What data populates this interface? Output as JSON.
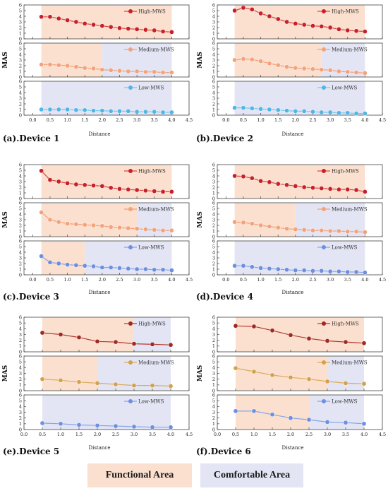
{
  "colors": {
    "functional": "#fbe0cf",
    "comfortable": "#e3e5f4",
    "high": "#c8202a",
    "high_line": "#d84a40",
    "medium": "#f4a27a",
    "medium_line": "#f0a07a",
    "low": "#4fb6e6",
    "low_line": "#79c7ec",
    "high6": "#9e2a22",
    "high6_line": "#b33a30",
    "medium6": "#d4a04a",
    "medium6_line": "#d9ab5e",
    "low6": "#6c8fe0",
    "low6_line": "#86a4e6"
  },
  "legend": {
    "functional": "Functional Area",
    "comfortable": "Comfortable Area"
  },
  "chart_data": [
    {
      "type": "line",
      "title": "(a).Device 1",
      "xlabel": "Distance",
      "ylabel": "MAS",
      "xlim": [
        -0.25,
        4.5
      ],
      "xticks": [
        "0.0",
        "0.5",
        "1.0",
        "1.5",
        "2.0",
        "2.5",
        "3.0",
        "3.5",
        "4.0",
        "4.5"
      ],
      "yticks": [
        "0",
        "1",
        "2",
        "3",
        "4",
        "5",
        "6"
      ],
      "ylim": [
        0,
        6
      ],
      "series": [
        {
          "name": "High-MWS",
          "color": "high",
          "functional": [
            0.25,
            4.0
          ],
          "comfortable": null,
          "x": [
            0.25,
            0.5,
            0.75,
            1.0,
            1.25,
            1.5,
            1.75,
            2.0,
            2.25,
            2.5,
            2.75,
            3.0,
            3.25,
            3.5,
            3.75,
            4.0
          ],
          "y": [
            3.9,
            3.9,
            3.6,
            3.3,
            3.0,
            2.7,
            2.5,
            2.3,
            2.1,
            1.9,
            1.8,
            1.7,
            1.6,
            1.5,
            1.3,
            1.2
          ]
        },
        {
          "name": "Medium-MWS",
          "color": "medium",
          "functional": [
            0.25,
            2.0
          ],
          "comfortable": [
            2.0,
            4.0
          ],
          "x": [
            0.25,
            0.5,
            0.75,
            1.0,
            1.25,
            1.5,
            1.75,
            2.0,
            2.25,
            2.5,
            2.75,
            3.0,
            3.25,
            3.5,
            3.75,
            4.0
          ],
          "y": [
            2.2,
            2.2,
            2.1,
            2.0,
            1.8,
            1.6,
            1.5,
            1.3,
            1.2,
            1.1,
            1.0,
            1.0,
            0.9,
            0.9,
            0.8,
            0.8
          ]
        },
        {
          "name": "Low-MWS",
          "color": "low",
          "functional": null,
          "comfortable": [
            0.25,
            4.0
          ],
          "x": [
            0.25,
            0.5,
            0.75,
            1.0,
            1.25,
            1.5,
            1.75,
            2.0,
            2.25,
            2.5,
            2.75,
            3.0,
            3.25,
            3.5,
            3.75,
            4.0
          ],
          "y": [
            1.0,
            1.0,
            1.0,
            1.0,
            0.9,
            0.9,
            0.8,
            0.8,
            0.7,
            0.7,
            0.7,
            0.6,
            0.6,
            0.6,
            0.5,
            0.5
          ]
        }
      ]
    },
    {
      "type": "line",
      "title": "(b).Device 2",
      "xlabel": "Distance",
      "ylabel": "MAS",
      "xlim": [
        -0.25,
        4.5
      ],
      "xticks": [
        "0.0",
        "0.5",
        "1.0",
        "1.5",
        "2.0",
        "2.5",
        "3.0",
        "3.5",
        "4.0",
        "4.5"
      ],
      "yticks": [
        "0",
        "1",
        "2",
        "3",
        "4",
        "5",
        "6"
      ],
      "ylim": [
        0,
        6
      ],
      "series": [
        {
          "name": "High-MWS",
          "color": "high",
          "functional": [
            0.25,
            4.0
          ],
          "comfortable": null,
          "x": [
            0.25,
            0.5,
            0.75,
            1.0,
            1.25,
            1.5,
            1.75,
            2.0,
            2.25,
            2.5,
            2.75,
            3.0,
            3.25,
            3.5,
            3.75,
            4.0
          ],
          "y": [
            5.0,
            5.5,
            5.2,
            4.5,
            4.0,
            3.5,
            3.0,
            2.7,
            2.5,
            2.3,
            2.2,
            2.0,
            1.7,
            1.5,
            1.4,
            1.3
          ]
        },
        {
          "name": "Medium-MWS",
          "color": "medium",
          "functional": [
            0.25,
            2.75
          ],
          "comfortable": [
            2.75,
            4.0
          ],
          "x": [
            0.25,
            0.5,
            0.75,
            1.0,
            1.25,
            1.5,
            1.75,
            2.0,
            2.25,
            2.5,
            2.75,
            3.0,
            3.25,
            3.5,
            3.75,
            4.0
          ],
          "y": [
            3.0,
            3.2,
            3.1,
            2.8,
            2.4,
            2.1,
            1.8,
            1.6,
            1.5,
            1.4,
            1.3,
            1.2,
            1.0,
            0.9,
            0.8,
            0.7
          ]
        },
        {
          "name": "Low-MWS",
          "color": "low",
          "functional": null,
          "comfortable": [
            0.25,
            4.0
          ],
          "x": [
            0.25,
            0.5,
            0.75,
            1.0,
            1.25,
            1.5,
            1.75,
            2.0,
            2.25,
            2.5,
            2.75,
            3.0,
            3.25,
            3.5,
            3.75,
            4.0
          ],
          "y": [
            1.3,
            1.3,
            1.2,
            1.1,
            1.0,
            0.9,
            0.8,
            0.7,
            0.7,
            0.6,
            0.5,
            0.5,
            0.4,
            0.4,
            0.3,
            0.3
          ]
        }
      ]
    },
    {
      "type": "line",
      "title": "(c).Device 3",
      "xlabel": "Distance",
      "ylabel": "MAS",
      "xlim": [
        -0.25,
        4.5
      ],
      "xticks": [
        "0.0",
        "0.5",
        "1.0",
        "1.5",
        "2.0",
        "2.5",
        "3.0",
        "3.5",
        "4.0",
        "4.5"
      ],
      "yticks": [
        "0",
        "1",
        "2",
        "3",
        "4",
        "5",
        "6"
      ],
      "ylim": [
        0,
        6
      ],
      "series": [
        {
          "name": "High-MWS",
          "color": "high",
          "functional": [
            0.25,
            4.0
          ],
          "comfortable": null,
          "x": [
            0.25,
            0.5,
            0.75,
            1.0,
            1.25,
            1.5,
            1.75,
            2.0,
            2.25,
            2.5,
            2.75,
            3.0,
            3.25,
            3.5,
            3.75,
            4.0
          ],
          "y": [
            4.9,
            3.3,
            3.0,
            2.7,
            2.5,
            2.4,
            2.3,
            2.2,
            1.9,
            1.7,
            1.6,
            1.5,
            1.4,
            1.3,
            1.2,
            1.2
          ]
        },
        {
          "name": "Medium-MWS",
          "color": "medium",
          "functional": [
            0.25,
            3.0
          ],
          "comfortable": [
            3.0,
            4.0
          ],
          "x": [
            0.25,
            0.5,
            0.75,
            1.0,
            1.25,
            1.5,
            1.75,
            2.0,
            2.25,
            2.5,
            2.75,
            3.0,
            3.25,
            3.5,
            3.75,
            4.0
          ],
          "y": [
            4.3,
            3.0,
            2.6,
            2.3,
            2.2,
            2.1,
            2.0,
            1.9,
            1.7,
            1.6,
            1.5,
            1.4,
            1.3,
            1.2,
            1.1,
            1.1
          ]
        },
        {
          "name": "Low-MWS",
          "color": "low6",
          "functional": [
            0.25,
            1.5
          ],
          "comfortable": [
            1.5,
            4.0
          ],
          "x": [
            0.25,
            0.5,
            0.75,
            1.0,
            1.25,
            1.5,
            1.75,
            2.0,
            2.25,
            2.5,
            2.75,
            3.0,
            3.25,
            3.5,
            3.75,
            4.0
          ],
          "y": [
            3.3,
            2.2,
            2.0,
            1.8,
            1.7,
            1.6,
            1.5,
            1.3,
            1.3,
            1.2,
            1.1,
            1.0,
            1.0,
            0.9,
            0.9,
            0.8
          ]
        }
      ]
    },
    {
      "type": "line",
      "title": "(d).Device 4",
      "xlabel": "Distance",
      "ylabel": "MAS",
      "xlim": [
        -0.25,
        4.5
      ],
      "xticks": [
        "0.0",
        "0.5",
        "1.0",
        "1.5",
        "2.0",
        "2.5",
        "3.0",
        "3.5",
        "4.0",
        "4.5"
      ],
      "yticks": [
        "0",
        "1",
        "2",
        "3",
        "4",
        "5",
        "6"
      ],
      "ylim": [
        0,
        6
      ],
      "series": [
        {
          "name": "High-MWS",
          "color": "high",
          "functional": [
            0.25,
            4.0
          ],
          "comfortable": null,
          "x": [
            0.25,
            0.5,
            0.75,
            1.0,
            1.25,
            1.5,
            1.75,
            2.0,
            2.25,
            2.5,
            2.75,
            3.0,
            3.25,
            3.5,
            3.75,
            4.0
          ],
          "y": [
            4.0,
            3.9,
            3.6,
            3.1,
            2.9,
            2.6,
            2.4,
            2.2,
            2.0,
            1.9,
            1.8,
            1.7,
            1.6,
            1.6,
            1.5,
            1.2
          ]
        },
        {
          "name": "Medium-MWS",
          "color": "medium",
          "functional": [
            0.25,
            2.0
          ],
          "comfortable": [
            2.0,
            4.0
          ],
          "x": [
            0.25,
            0.5,
            0.75,
            1.0,
            1.25,
            1.5,
            1.75,
            2.0,
            2.25,
            2.5,
            2.75,
            3.0,
            3.25,
            3.5,
            3.75,
            4.0
          ],
          "y": [
            2.6,
            2.5,
            2.3,
            2.0,
            1.8,
            1.6,
            1.4,
            1.3,
            1.2,
            1.1,
            1.1,
            1.0,
            1.0,
            0.9,
            0.9,
            0.8
          ]
        },
        {
          "name": "Low-MWS",
          "color": "low6",
          "functional": null,
          "comfortable": [
            0.25,
            4.0
          ],
          "x": [
            0.25,
            0.5,
            0.75,
            1.0,
            1.25,
            1.5,
            1.75,
            2.0,
            2.25,
            2.5,
            2.75,
            3.0,
            3.25,
            3.5,
            3.75,
            4.0
          ],
          "y": [
            1.6,
            1.6,
            1.4,
            1.2,
            1.1,
            1.0,
            0.9,
            0.8,
            0.8,
            0.7,
            0.7,
            0.6,
            0.6,
            0.5,
            0.5,
            0.4
          ]
        }
      ]
    },
    {
      "type": "line",
      "title": "(e).Device 5",
      "xlabel": "Distance",
      "ylabel": "MAS",
      "xlim": [
        0.0,
        4.5
      ],
      "xticks": [
        "0.0",
        "0.5",
        "1.0",
        "1.5",
        "2.0",
        "2.5",
        "3.0",
        "3.5",
        "4.0",
        "4.5"
      ],
      "yticks": [
        "0",
        "1",
        "2",
        "3",
        "4",
        "5",
        "6"
      ],
      "ylim": [
        0,
        6
      ],
      "series": [
        {
          "name": "High-MWS",
          "color": "high6",
          "functional": [
            0.5,
            3.0
          ],
          "comfortable": [
            3.0,
            4.0
          ],
          "x": [
            0.5,
            1.0,
            1.5,
            2.0,
            2.5,
            3.0,
            3.5,
            4.0
          ],
          "y": [
            3.3,
            3.0,
            2.5,
            1.8,
            1.7,
            1.4,
            1.3,
            1.2
          ]
        },
        {
          "name": "Medium-MWS",
          "color": "medium6",
          "functional": [
            0.5,
            2.0
          ],
          "comfortable": [
            2.0,
            4.0
          ],
          "x": [
            0.5,
            1.0,
            1.5,
            2.0,
            2.5,
            3.0,
            3.5,
            4.0
          ],
          "y": [
            2.0,
            1.8,
            1.5,
            1.3,
            1.1,
            0.9,
            0.9,
            0.8
          ]
        },
        {
          "name": "Low-MWS",
          "color": "low6",
          "functional": null,
          "comfortable": [
            0.5,
            4.0
          ],
          "x": [
            0.5,
            1.0,
            1.5,
            2.0,
            2.5,
            3.0,
            3.5,
            4.0
          ],
          "y": [
            1.1,
            1.0,
            0.8,
            0.7,
            0.6,
            0.5,
            0.4,
            0.4
          ]
        }
      ]
    },
    {
      "type": "line",
      "title": "(f).Device 6",
      "xlabel": "Distance",
      "ylabel": "MAS",
      "xlim": [
        0.0,
        4.5
      ],
      "xticks": [
        "0.0",
        "0.5",
        "1.0",
        "1.5",
        "2.0",
        "2.5",
        "3.0",
        "3.5",
        "4.0",
        "4.5"
      ],
      "yticks": [
        "0",
        "1",
        "2",
        "3",
        "4",
        "5",
        "6"
      ],
      "ylim": [
        0,
        6
      ],
      "series": [
        {
          "name": "High-MWS",
          "color": "high6",
          "functional": [
            0.5,
            4.0
          ],
          "comfortable": null,
          "x": [
            0.5,
            1.0,
            1.5,
            2.0,
            2.5,
            3.0,
            3.5,
            4.0
          ],
          "y": [
            4.5,
            4.4,
            3.7,
            2.9,
            2.3,
            1.9,
            1.7,
            1.5
          ]
        },
        {
          "name": "Medium-MWS",
          "color": "medium6",
          "functional": [
            0.5,
            3.0
          ],
          "comfortable": [
            3.0,
            4.0
          ],
          "x": [
            0.5,
            1.0,
            1.5,
            2.0,
            2.5,
            3.0,
            3.5,
            4.0
          ],
          "y": [
            3.9,
            3.3,
            2.7,
            2.3,
            2.0,
            1.6,
            1.3,
            1.2
          ]
        },
        {
          "name": "Low-MWS",
          "color": "low6",
          "functional": [
            0.5,
            2.5
          ],
          "comfortable": [
            2.5,
            4.0
          ],
          "x": [
            0.5,
            1.0,
            1.5,
            2.0,
            2.5,
            3.0,
            3.5,
            4.0
          ],
          "y": [
            3.2,
            3.2,
            2.6,
            2.0,
            1.7,
            1.3,
            1.2,
            1.0
          ]
        }
      ]
    }
  ]
}
